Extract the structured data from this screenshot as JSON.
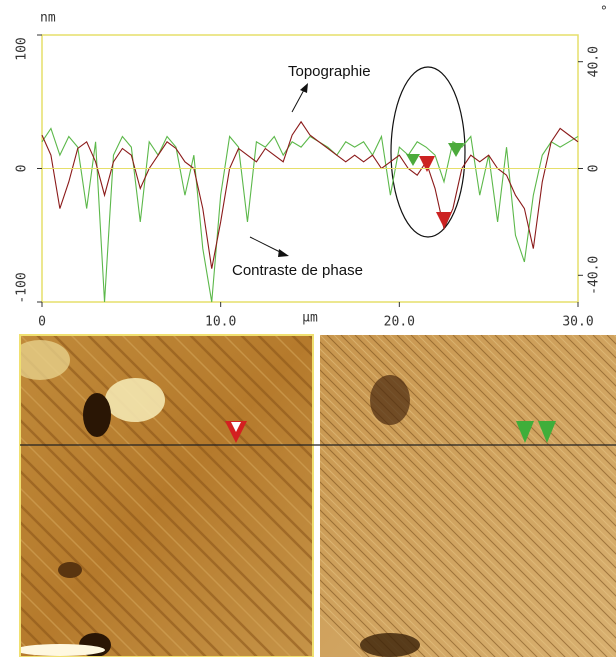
{
  "chart_data": {
    "type": "line",
    "x_label": "µm",
    "y_label": "nm",
    "y2_label": "°",
    "annotations": [
      "Topographie",
      "Contraste de phase"
    ],
    "x": [
      0,
      0.5,
      1,
      1.5,
      2,
      2.5,
      3,
      3.5,
      4,
      4.5,
      5,
      5.5,
      6,
      6.5,
      7,
      7.5,
      8,
      8.5,
      9,
      9.5,
      10,
      10.5,
      11,
      11.5,
      12,
      12.5,
      13,
      13.5,
      14,
      14.5,
      15,
      15.5,
      16,
      16.5,
      17,
      17.5,
      18,
      18.5,
      19,
      19.5,
      20,
      20.5,
      21,
      21.5,
      22,
      22.5,
      23,
      23.5,
      24,
      24.5,
      25,
      25.5,
      26,
      26.5,
      27,
      27.5,
      28,
      28.5,
      29,
      29.5,
      30
    ],
    "series": [
      {
        "name": "Topographie",
        "color": "#8b1a1a",
        "axis": "y",
        "values": [
          25,
          10,
          -30,
          -10,
          15,
          20,
          5,
          -20,
          5,
          15,
          10,
          -15,
          0,
          10,
          20,
          15,
          5,
          0,
          -30,
          -75,
          -40,
          0,
          15,
          10,
          5,
          15,
          10,
          5,
          25,
          35,
          25,
          20,
          15,
          10,
          5,
          10,
          5,
          10,
          0,
          5,
          10,
          0,
          -5,
          5,
          -15,
          -45,
          -30,
          0,
          10,
          5,
          10,
          0,
          -5,
          -20,
          -30,
          -60,
          -10,
          20,
          30,
          25,
          20
        ]
      },
      {
        "name": "Contraste de phase",
        "color": "#5cb84a",
        "axis": "y2",
        "values": [
          10,
          15,
          5,
          12,
          8,
          -15,
          10,
          -50,
          5,
          12,
          8,
          -20,
          10,
          5,
          12,
          8,
          -10,
          5,
          -30,
          -50,
          -10,
          12,
          8,
          -20,
          10,
          8,
          12,
          5,
          10,
          8,
          12,
          10,
          8,
          5,
          10,
          8,
          10,
          5,
          12,
          -10,
          8,
          5,
          10,
          8,
          5,
          -5,
          10,
          8,
          12,
          -10,
          5,
          -20,
          8,
          -25,
          -35,
          -10,
          5,
          10,
          8,
          10,
          12
        ]
      }
    ],
    "xlim": [
      0,
      30
    ],
    "xticks": [
      0,
      {
        "value": 10,
        "label": "10.0"
      },
      {
        "value": 20,
        "label": "20.0"
      },
      {
        "value": 30,
        "label": "30.0"
      }
    ],
    "ylim": [
      -100,
      100
    ],
    "yticks": [
      -100,
      0,
      100
    ],
    "y2lim": [
      -50,
      50
    ],
    "y2ticks": [
      {
        "value": -40,
        "label": "-40.0"
      },
      0,
      {
        "value": 40,
        "label": "40.0"
      }
    ]
  }
}
